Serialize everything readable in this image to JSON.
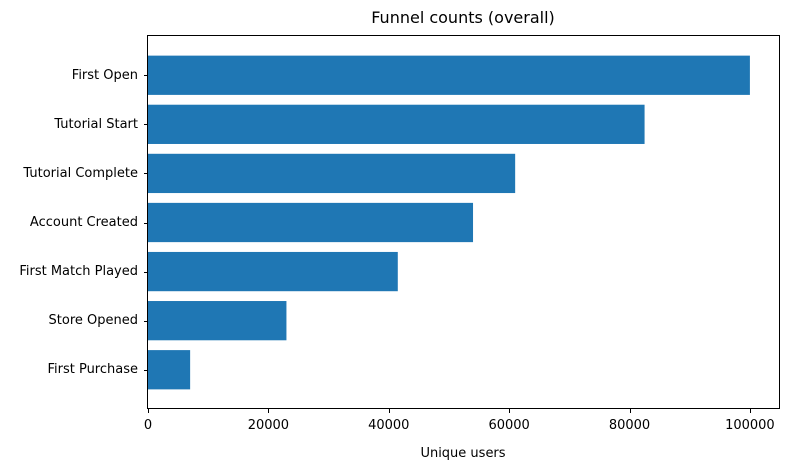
{
  "chart_data": {
    "type": "bar",
    "orientation": "horizontal",
    "title": "Funnel counts (overall)",
    "xlabel": "Unique users",
    "ylabel": "",
    "categories": [
      "First Open",
      "Tutorial Start",
      "Tutorial Complete",
      "Account Created",
      "First Match Played",
      "Store Opened",
      "First Purchase"
    ],
    "values": [
      100000,
      82500,
      61000,
      54000,
      41500,
      23000,
      7000
    ],
    "xlim": [
      0,
      105000
    ],
    "xticks": [
      0,
      20000,
      40000,
      60000,
      80000,
      100000
    ],
    "xtick_labels": [
      "0",
      "20000",
      "40000",
      "60000",
      "80000",
      "100000"
    ],
    "bar_color": "#1f77b4",
    "grid": false,
    "legend": "none"
  }
}
